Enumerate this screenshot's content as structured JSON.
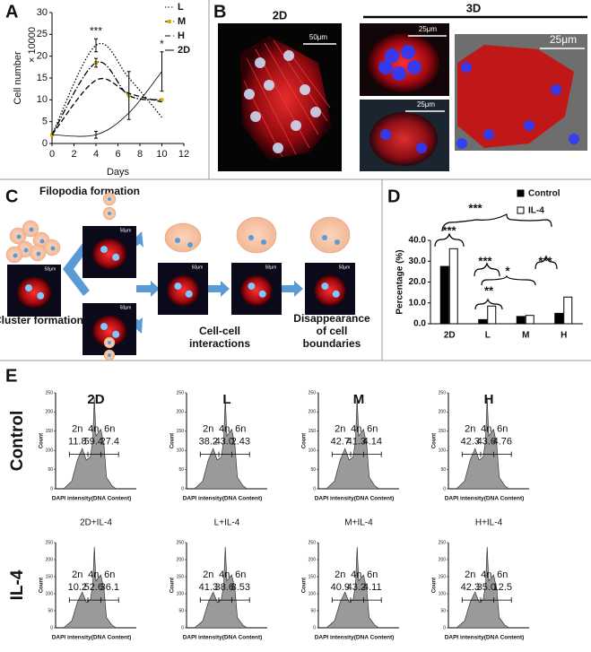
{
  "panel_labels": [
    "A",
    "B",
    "C",
    "D",
    "E"
  ],
  "chart_data": [
    {
      "type": "line",
      "xlabel": "Days",
      "ylabel": "Cell number",
      "y_unit": "× 10000",
      "x": [
        0,
        4,
        7,
        10
      ],
      "xlim": [
        0,
        12
      ],
      "xticks": [
        0,
        2,
        4,
        6,
        8,
        10,
        12
      ],
      "ylim": [
        0,
        30
      ],
      "yticks": [
        0,
        5,
        10,
        15,
        20,
        25,
        30
      ],
      "series": [
        {
          "name": "L",
          "color": "#000000",
          "dash": "dotted",
          "values": [
            2,
            22.5,
            15,
            6
          ],
          "errors": [
            null,
            1.5,
            null,
            null
          ]
        },
        {
          "name": "M",
          "color": "#000000",
          "dash": "dashdot",
          "marker_color": "#d4b000",
          "values": [
            2,
            18.5,
            11,
            10
          ],
          "errors": [
            null,
            1,
            5.5,
            null
          ]
        },
        {
          "name": "H",
          "color": "#000000",
          "dash": "dashed",
          "values": [
            2,
            14.5,
            11.5,
            9.5
          ]
        },
        {
          "name": "2D",
          "color": "#000000",
          "dash": "solid",
          "values": [
            2,
            2,
            7,
            16.5
          ],
          "errors": [
            null,
            0.8,
            null,
            4.5
          ]
        }
      ],
      "annotations": [
        {
          "text": "***",
          "x": 4
        },
        {
          "text": "*",
          "x": 10
        }
      ],
      "legend": "top-right"
    },
    {
      "type": "bar",
      "ylabel": "Percentage (%)",
      "categories": [
        "2D",
        "L",
        "M",
        "H"
      ],
      "ylim": [
        0,
        40
      ],
      "yticks": [
        {
          "value": 0,
          "label": "0.0"
        },
        {
          "value": 10,
          "label": "10.0"
        },
        {
          "value": 20,
          "label": "20.0"
        },
        {
          "value": 30,
          "label": "30.0"
        },
        {
          "value": 40,
          "label": "40.0"
        }
      ],
      "series": [
        {
          "name": "Control",
          "color": "#000000",
          "values": [
            27.5,
            2,
            3.5,
            5
          ]
        },
        {
          "name": "IL-4",
          "color": "#ffffff",
          "values": [
            36,
            8.5,
            4,
            12.8
          ]
        }
      ],
      "annotations": [
        "***",
        "***",
        "***",
        "*",
        "***",
        "**"
      ],
      "legend": "top-right"
    }
  ],
  "panel_b": {
    "title_2d": "2D",
    "title_3d": "3D",
    "scale_bars": [
      "50μm",
      "25μm",
      "25μm",
      "25μm"
    ]
  },
  "panel_c": {
    "title": "Filopodia formation",
    "steps": [
      "Cluster formation",
      "Cell-cell interactions",
      "Disappearance of cell boundaries"
    ],
    "scale_bar": "50μm"
  },
  "panel_e": {
    "columns": [
      "2D",
      "L",
      "M",
      "H"
    ],
    "gates": [
      "2n",
      "4n",
      "6n"
    ],
    "y_label": "Count",
    "x_label": "DAPI intensity(DNA Content)",
    "yticks": [
      0,
      50,
      100,
      150,
      200,
      250
    ],
    "rows": [
      {
        "label": "Control",
        "plots": [
          {
            "percent": [
              "11.8",
              "59.4",
              "27.4"
            ]
          },
          {
            "percent": [
              "38.2",
              "43.0",
              "2.43"
            ]
          },
          {
            "percent": [
              "42.7",
              "41.3",
              "4.14"
            ]
          },
          {
            "percent": [
              "42.3",
              "43.6",
              "4.76"
            ]
          }
        ]
      },
      {
        "label": "IL-4",
        "plots": [
          {
            "title": "2D+IL-4",
            "percent": [
              "10.2",
              "52.6",
              "36.1"
            ]
          },
          {
            "title": "L+IL-4",
            "percent": [
              "41.3",
              "38.6",
              "8.53"
            ]
          },
          {
            "title": "M+IL-4",
            "percent": [
              "40.9",
              "43.2",
              "4.11"
            ]
          },
          {
            "title": "H+IL-4",
            "percent": [
              "42.3",
              "35.0",
              "12.5"
            ]
          }
        ]
      }
    ]
  }
}
